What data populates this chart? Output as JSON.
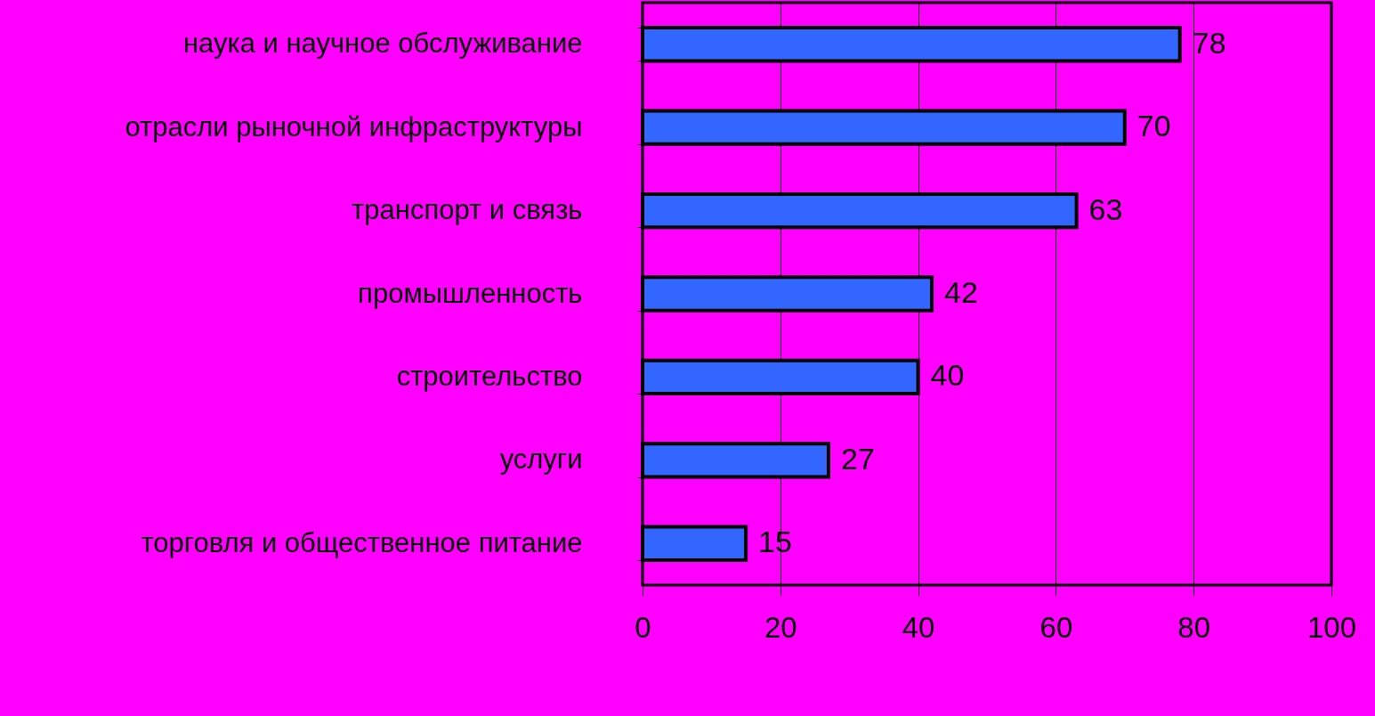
{
  "chart_data": {
    "type": "bar",
    "orientation": "horizontal",
    "categories": [
      "наука и научное обслуживание",
      "отрасли рыночной инфраструктуры",
      "транспорт и связь",
      "промышленность",
      "строительство",
      "услуги",
      "торговля и общественное питание"
    ],
    "values": [
      78,
      70,
      63,
      42,
      40,
      27,
      15
    ],
    "color": "#3366ff",
    "xlim": [
      0,
      100
    ],
    "xticks": [
      0,
      20,
      40,
      60,
      80,
      100
    ],
    "grid": "x",
    "data_labels": true
  }
}
